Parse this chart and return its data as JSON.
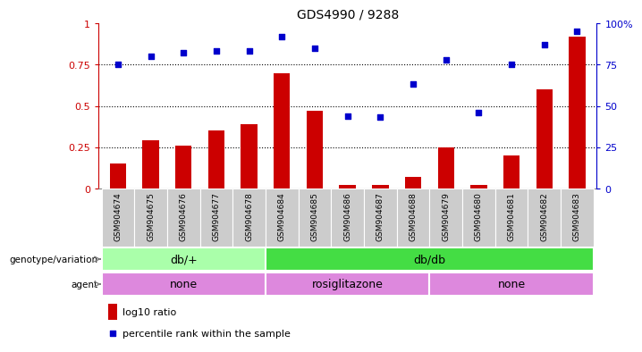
{
  "title": "GDS4990 / 9288",
  "samples": [
    "GSM904674",
    "GSM904675",
    "GSM904676",
    "GSM904677",
    "GSM904678",
    "GSM904684",
    "GSM904685",
    "GSM904686",
    "GSM904687",
    "GSM904688",
    "GSM904679",
    "GSM904680",
    "GSM904681",
    "GSM904682",
    "GSM904683"
  ],
  "log10_ratio": [
    0.15,
    0.29,
    0.26,
    0.35,
    0.39,
    0.7,
    0.47,
    0.02,
    0.02,
    0.07,
    0.25,
    0.02,
    0.2,
    0.6,
    0.92
  ],
  "percentile_rank": [
    75,
    80,
    82,
    83,
    83,
    92,
    85,
    44,
    43,
    63,
    78,
    46,
    75,
    87,
    95
  ],
  "bar_color": "#cc0000",
  "dot_color": "#0000cc",
  "left_axis_color": "#cc0000",
  "right_axis_color": "#0000cc",
  "ylim_left": [
    0,
    1.0
  ],
  "ylim_right": [
    0,
    100
  ],
  "yticks_left": [
    0,
    0.25,
    0.5,
    0.75,
    1.0
  ],
  "yticks_right": [
    0,
    25,
    50,
    75,
    100
  ],
  "ytick_labels_left": [
    "0",
    "0.25",
    "0.5",
    "0.75",
    "1"
  ],
  "ytick_labels_right": [
    "0",
    "25",
    "50",
    "75",
    "100%"
  ],
  "hlines": [
    0.25,
    0.5,
    0.75
  ],
  "genotype_groups": [
    {
      "label": "db/+",
      "start": 0,
      "end": 5,
      "color": "#aaeea a"
    },
    {
      "label": "db/db",
      "start": 5,
      "end": 15,
      "color": "#44cc44"
    }
  ],
  "agent_groups": [
    {
      "label": "none",
      "start": 0,
      "end": 5
    },
    {
      "label": "rosiglitazone",
      "start": 5,
      "end": 10
    },
    {
      "label": "none",
      "start": 10,
      "end": 15
    }
  ],
  "agent_color": "#dd88dd",
  "genotype_light_color": "#aaffaa",
  "genotype_dark_color": "#44dd44",
  "legend_bar_label": "log10 ratio",
  "legend_dot_label": "percentile rank within the sample",
  "background_color": "#ffffff",
  "tick_bg_color": "#cccccc",
  "title_fontsize": 10,
  "bar_width": 0.5
}
